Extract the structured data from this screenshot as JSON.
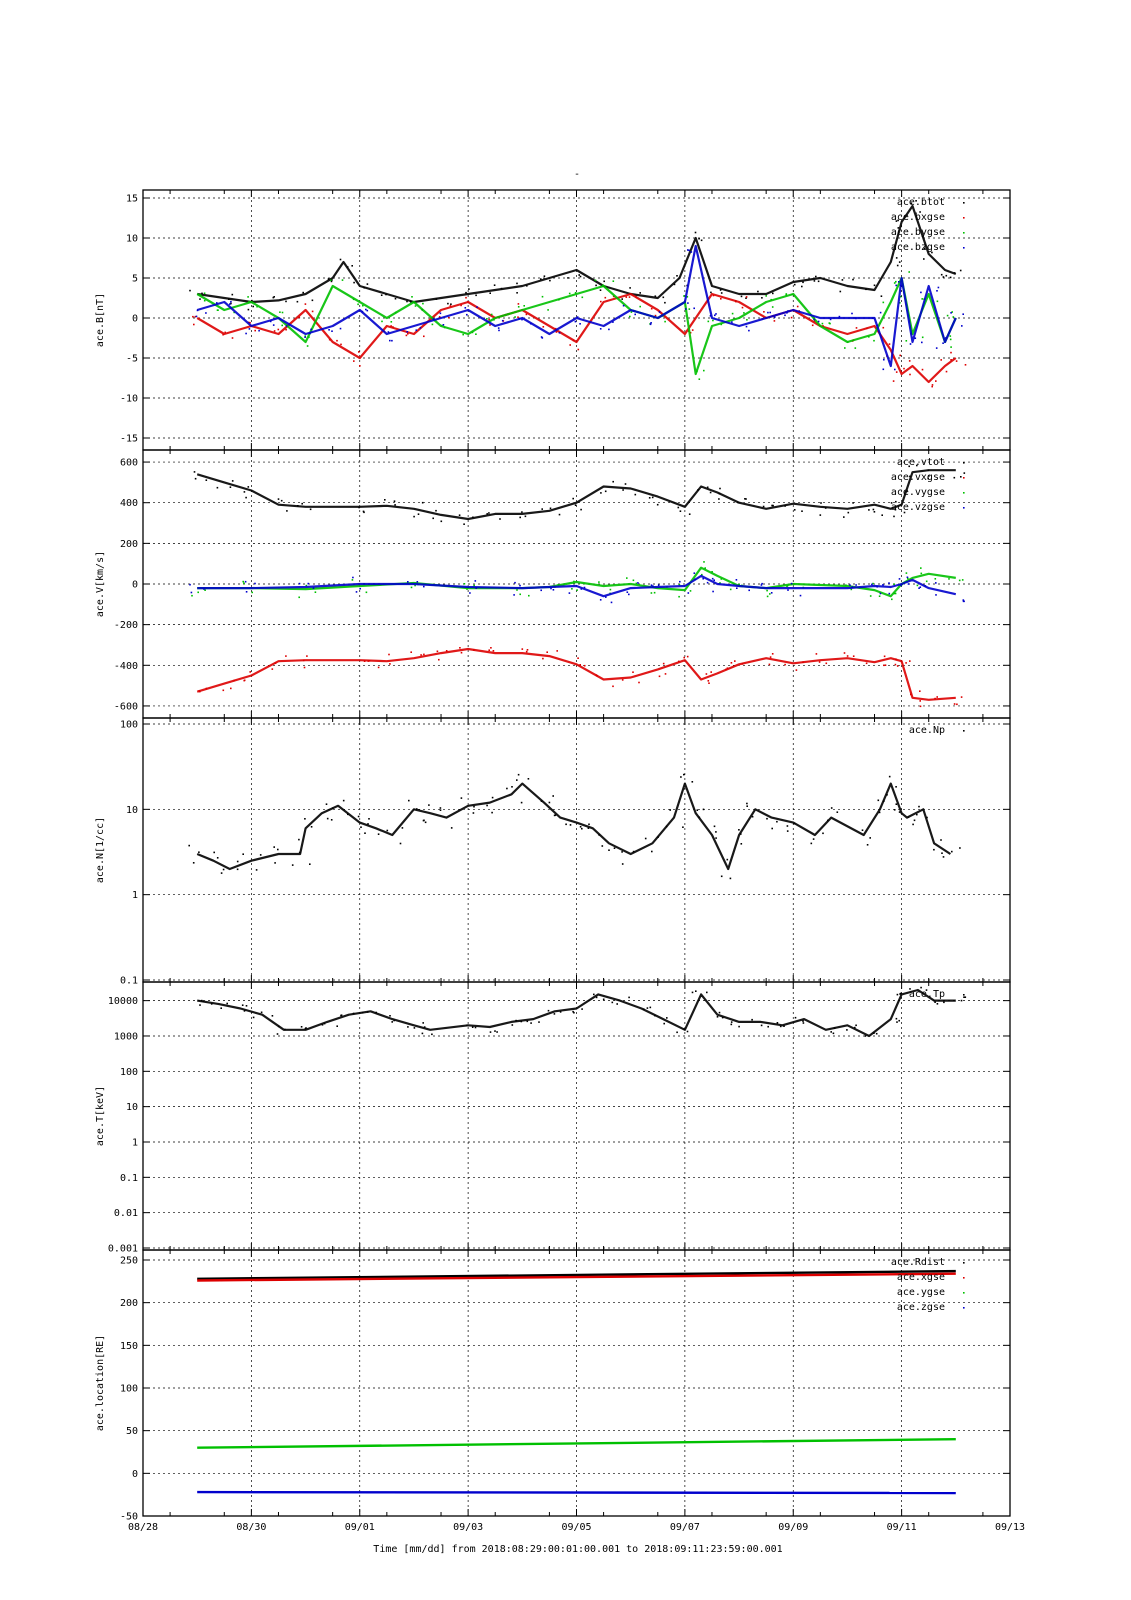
{
  "figure": {
    "title": "-",
    "xlabel": "Time [mm/dd]  from 2018:08:29:00:01:00.001  to  2018:09:11:23:59:00.001"
  },
  "colors": {
    "black": "#000000",
    "red": "#dd0000",
    "green": "#00c000",
    "blue": "#0000cc"
  },
  "chart_data": [
    {
      "type": "scatter",
      "ylabel": "ace.B[nT]",
      "ylim": [
        -15,
        15
      ],
      "yticks": [
        "-15",
        "-10",
        "-5",
        "0",
        "5",
        "10",
        "15"
      ],
      "ytick_values": [
        -15,
        -10,
        -5,
        0,
        5,
        10,
        15
      ],
      "grid": true,
      "legend": "top-right",
      "x_ticks": [
        "08/28",
        "08/30",
        "09/01",
        "09/03",
        "09/05",
        "09/07",
        "09/09",
        "09/11",
        "09/13"
      ],
      "x_tick_values": [
        0,
        2,
        4,
        6,
        8,
        10,
        12,
        14,
        16
      ],
      "xlim": [
        0,
        16
      ],
      "series": [
        {
          "name": "ace.btot",
          "color": "black",
          "x": [
            1,
            1.5,
            2,
            2.5,
            3,
            3.5,
            3.7,
            4,
            4.5,
            5,
            5.5,
            6,
            6.5,
            7,
            7.5,
            8,
            8.5,
            9,
            9.5,
            9.9,
            10.2,
            10.5,
            11,
            11.5,
            12,
            12.5,
            13,
            13.5,
            13.8,
            14,
            14.2,
            14.5,
            14.8,
            15
          ],
          "y": [
            3,
            2.5,
            2,
            2.2,
            3,
            5,
            7,
            4,
            3,
            2,
            2.5,
            3,
            3.5,
            4,
            5,
            6,
            4,
            3,
            2.5,
            5,
            10,
            4,
            3,
            3,
            4.5,
            5,
            4,
            3.5,
            7,
            12,
            14,
            8,
            6,
            5.5
          ]
        },
        {
          "name": "ace.bxgse",
          "color": "red",
          "x": [
            1,
            1.5,
            2,
            2.5,
            3,
            3.5,
            4,
            4.5,
            5,
            5.5,
            6,
            6.5,
            7,
            7.5,
            8,
            8.5,
            9,
            9.5,
            10,
            10.5,
            11,
            11.5,
            12,
            12.5,
            13,
            13.5,
            13.8,
            14,
            14.2,
            14.5,
            14.8,
            15
          ],
          "y": [
            0,
            -2,
            -1,
            -2,
            1,
            -3,
            -5,
            -1,
            -2,
            1,
            2,
            0,
            1,
            -1,
            -3,
            2,
            3,
            1,
            -2,
            3,
            2,
            0,
            1,
            -1,
            -2,
            -1,
            -4,
            -7,
            -6,
            -8,
            -6,
            -5
          ]
        },
        {
          "name": "ace.bygse",
          "color": "green",
          "x": [
            1,
            1.5,
            2,
            2.5,
            3,
            3.5,
            4,
            4.5,
            5,
            5.5,
            6,
            6.5,
            7,
            7.5,
            8,
            8.5,
            9,
            9.5,
            10,
            10.2,
            10.5,
            11,
            11.5,
            12,
            12.5,
            13,
            13.5,
            13.8,
            14,
            14.2,
            14.5,
            14.8,
            15
          ],
          "y": [
            3,
            1,
            2,
            0,
            -3,
            4,
            2,
            0,
            2,
            -1,
            -2,
            0,
            1,
            2,
            3,
            4,
            1,
            0,
            2,
            -7,
            -1,
            0,
            2,
            3,
            -1,
            -3,
            -2,
            2,
            5,
            -2,
            3,
            -3,
            0
          ]
        },
        {
          "name": "ace.bzgse",
          "color": "blue",
          "x": [
            1,
            1.5,
            2,
            2.5,
            3,
            3.5,
            4,
            4.5,
            5,
            5.5,
            6,
            6.5,
            7,
            7.5,
            8,
            8.5,
            9,
            9.5,
            10,
            10.2,
            10.5,
            11,
            11.5,
            12,
            12.5,
            13,
            13.5,
            13.8,
            14,
            14.2,
            14.5,
            14.8,
            15
          ],
          "y": [
            1,
            2,
            -1,
            0,
            -2,
            -1,
            1,
            -2,
            -1,
            0,
            1,
            -1,
            0,
            -2,
            0,
            -1,
            1,
            0,
            2,
            9,
            0,
            -1,
            0,
            1,
            0,
            0,
            0,
            -6,
            5,
            -3,
            4,
            -3,
            0
          ]
        }
      ]
    },
    {
      "type": "scatter",
      "ylabel": "ace.V[km/s]",
      "ylim": [
        -620,
        620
      ],
      "yticks": [
        "-600",
        "-400",
        "-200",
        "0",
        "200",
        "400",
        "600"
      ],
      "ytick_values": [
        -600,
        -400,
        -200,
        0,
        200,
        400,
        600
      ],
      "grid": true,
      "legend": "top-right",
      "x_ticks": [
        "08/28",
        "08/30",
        "09/01",
        "09/03",
        "09/05",
        "09/07",
        "09/09",
        "09/11",
        "09/13"
      ],
      "x_tick_values": [
        0,
        2,
        4,
        6,
        8,
        10,
        12,
        14,
        16
      ],
      "xlim": [
        0,
        16
      ],
      "series": [
        {
          "name": "ace.vtot",
          "color": "black",
          "x": [
            1,
            1.5,
            2,
            2.5,
            3,
            4,
            4.5,
            5,
            5.5,
            6,
            6.5,
            7,
            7.5,
            8,
            8.5,
            9,
            9.5,
            10,
            10.3,
            10.6,
            11,
            11.5,
            12,
            12.5,
            13,
            13.5,
            13.8,
            14,
            14.2,
            14.5,
            15
          ],
          "y": [
            540,
            500,
            460,
            390,
            380,
            380,
            385,
            370,
            340,
            320,
            345,
            345,
            360,
            400,
            480,
            470,
            430,
            380,
            480,
            450,
            400,
            370,
            395,
            380,
            370,
            390,
            370,
            390,
            550,
            560,
            560
          ]
        },
        {
          "name": "ace.vxgse",
          "color": "red",
          "x": [
            1,
            1.5,
            2,
            2.5,
            3,
            4,
            4.5,
            5,
            5.5,
            6,
            6.5,
            7,
            7.5,
            8,
            8.5,
            9,
            9.5,
            10,
            10.3,
            10.6,
            11,
            11.5,
            12,
            12.5,
            13,
            13.5,
            13.8,
            14,
            14.2,
            14.5,
            15
          ],
          "y": [
            -530,
            -490,
            -450,
            -380,
            -375,
            -375,
            -380,
            -365,
            -340,
            -320,
            -340,
            -340,
            -355,
            -395,
            -470,
            -460,
            -420,
            -375,
            -470,
            -440,
            -395,
            -365,
            -390,
            -375,
            -365,
            -385,
            -365,
            -380,
            -560,
            -570,
            -560
          ]
        },
        {
          "name": "ace.vygse",
          "color": "green",
          "x": [
            1,
            2,
            3,
            4,
            5,
            6,
            7,
            7.5,
            8,
            8.5,
            9,
            9.5,
            10,
            10.3,
            10.6,
            11,
            11.5,
            12,
            13,
            13.5,
            13.8,
            14,
            14.2,
            14.5,
            15
          ],
          "y": [
            -20,
            -20,
            -25,
            -10,
            5,
            -20,
            -20,
            -15,
            10,
            -10,
            0,
            -20,
            -30,
            80,
            40,
            -10,
            -20,
            0,
            -10,
            -30,
            -60,
            0,
            30,
            50,
            30
          ]
        },
        {
          "name": "ace.vzgse",
          "color": "blue",
          "x": [
            1,
            2,
            3,
            4,
            5,
            6,
            7,
            7.5,
            8,
            8.5,
            9,
            9.5,
            10,
            10.3,
            10.6,
            11,
            11.5,
            12,
            13,
            13.5,
            13.8,
            14,
            14.2,
            14.5,
            15
          ],
          "y": [
            -20,
            -20,
            -15,
            0,
            0,
            -15,
            -20,
            -15,
            -10,
            -60,
            -20,
            -15,
            -10,
            40,
            0,
            -10,
            -20,
            -20,
            -20,
            -10,
            -15,
            0,
            20,
            -20,
            -50
          ]
        }
      ]
    },
    {
      "type": "scatter",
      "ylabel": "ace.N[1/cc]",
      "ylim": [
        0.1,
        100
      ],
      "log": true,
      "yticks": [
        "0.1",
        "1",
        "10",
        "100"
      ],
      "ytick_values": [
        0.1,
        1,
        10,
        100
      ],
      "grid": true,
      "legend": "top-right",
      "x_ticks": [
        "08/28",
        "08/30",
        "09/01",
        "09/03",
        "09/05",
        "09/07",
        "09/09",
        "09/11",
        "09/13"
      ],
      "x_tick_values": [
        0,
        2,
        4,
        6,
        8,
        10,
        12,
        14,
        16
      ],
      "xlim": [
        0,
        16
      ],
      "series": [
        {
          "name": "ace.Np",
          "color": "black",
          "x": [
            1,
            1.3,
            1.6,
            2,
            2.5,
            2.9,
            3,
            3.3,
            3.6,
            4,
            4.3,
            4.6,
            5,
            5.3,
            5.6,
            6,
            6.4,
            6.8,
            7,
            7.4,
            7.7,
            8,
            8.3,
            8.6,
            9,
            9.4,
            9.8,
            10,
            10.2,
            10.5,
            10.8,
            11,
            11.3,
            11.6,
            12,
            12.4,
            12.7,
            13.3,
            13.6,
            13.8,
            14,
            14.1,
            14.4,
            14.6,
            14.9
          ],
          "y": [
            3,
            2.5,
            2,
            2.5,
            3,
            3,
            6,
            9,
            11,
            7,
            6,
            5,
            10,
            9,
            8,
            11,
            12,
            15,
            20,
            12,
            8,
            7,
            6,
            4,
            3,
            4,
            8,
            20,
            9,
            5,
            2,
            5,
            10,
            8,
            7,
            5,
            8,
            5,
            10,
            20,
            9,
            8,
            10,
            4,
            3
          ]
        }
      ]
    },
    {
      "type": "scatter",
      "ylabel": "ace.T[keV]",
      "ylim": [
        0.001,
        20000
      ],
      "log": true,
      "yticks": [
        "0.001",
        "0.01",
        "0.1",
        "1",
        "10",
        "100",
        "1000",
        "10000"
      ],
      "ytick_values": [
        0.001,
        0.01,
        0.1,
        1,
        10,
        100,
        1000,
        10000
      ],
      "grid": true,
      "legend": "top-right",
      "x_ticks": [
        "08/28",
        "08/30",
        "09/01",
        "09/03",
        "09/05",
        "09/07",
        "09/09",
        "09/11",
        "09/13"
      ],
      "x_tick_values": [
        0,
        2,
        4,
        6,
        8,
        10,
        12,
        14,
        16
      ],
      "xlim": [
        0,
        16
      ],
      "series": [
        {
          "name": "ace.Tp",
          "color": "black",
          "x": [
            1,
            1.4,
            1.8,
            2.2,
            2.6,
            3,
            3.4,
            3.8,
            4.2,
            4.6,
            5,
            5.3,
            6,
            6.4,
            6.8,
            7.2,
            7.6,
            8,
            8.4,
            8.8,
            9.2,
            9.6,
            10,
            10.3,
            10.6,
            11,
            11.4,
            11.8,
            12.2,
            12.6,
            13,
            13.4,
            13.8,
            14,
            14.3,
            14.6,
            15
          ],
          "y": [
            10000,
            8000,
            6000,
            4000,
            1500,
            1500,
            2500,
            4000,
            5000,
            3000,
            2000,
            1500,
            2000,
            1800,
            2500,
            3000,
            5000,
            6000,
            15000,
            10000,
            6000,
            3000,
            1500,
            15000,
            4000,
            2500,
            2500,
            2000,
            3000,
            1500,
            2000,
            1000,
            3000,
            15000,
            20000,
            10000,
            10000
          ]
        }
      ]
    },
    {
      "type": "line",
      "ylabel": "ace.location[RE]",
      "ylim": [
        -50,
        250
      ],
      "yticks": [
        "-50",
        "0",
        "50",
        "100",
        "150",
        "200",
        "250"
      ],
      "ytick_values": [
        -50,
        0,
        50,
        100,
        150,
        200,
        250
      ],
      "grid": true,
      "legend": "top-right",
      "x_ticks": [
        "08/28",
        "08/30",
        "09/01",
        "09/03",
        "09/05",
        "09/07",
        "09/09",
        "09/11",
        "09/13"
      ],
      "x_tick_values": [
        0,
        2,
        4,
        6,
        8,
        10,
        12,
        14,
        16
      ],
      "xlim": [
        0,
        16
      ],
      "series": [
        {
          "name": "ace.Rdist",
          "color": "black",
          "x": [
            1,
            15
          ],
          "y": [
            228,
            237
          ]
        },
        {
          "name": "ace.xgse",
          "color": "red",
          "x": [
            1,
            15
          ],
          "y": [
            226,
            234
          ]
        },
        {
          "name": "ace.ygse",
          "color": "green",
          "x": [
            1,
            15
          ],
          "y": [
            30,
            40
          ]
        },
        {
          "name": "ace.zgse",
          "color": "blue",
          "x": [
            1,
            15
          ],
          "y": [
            -22,
            -23
          ]
        }
      ]
    }
  ]
}
